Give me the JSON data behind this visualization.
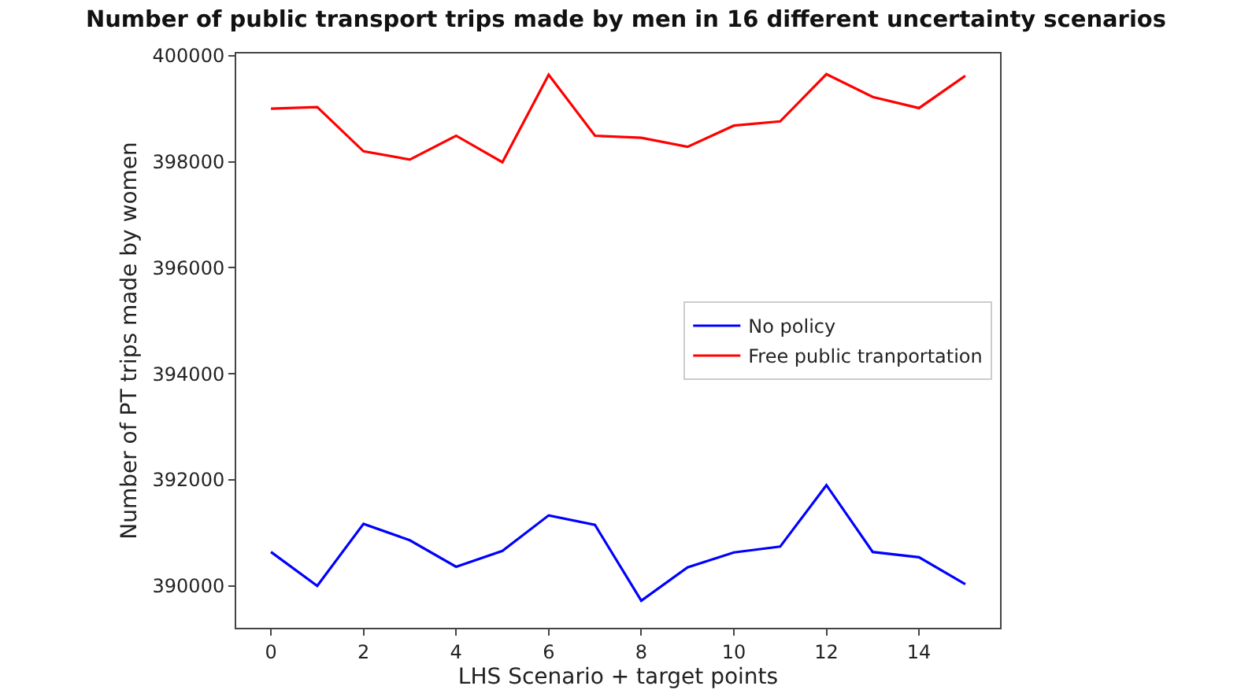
{
  "chart_data": {
    "type": "line",
    "title": "Number of public transport trips made by men in 16 different uncertainty scenarios",
    "xlabel": "LHS Scenario + target points",
    "ylabel": "Number of PT trips made by women",
    "x": [
      0,
      1,
      2,
      3,
      4,
      5,
      6,
      7,
      8,
      9,
      10,
      11,
      12,
      13,
      14,
      15
    ],
    "series": [
      {
        "name": "No policy",
        "color": "#0000ff",
        "values": [
          390640,
          390000,
          391170,
          390860,
          390360,
          390660,
          391330,
          391150,
          389720,
          390350,
          390630,
          390740,
          391900,
          390640,
          390540,
          390030
        ]
      },
      {
        "name": "Free public tranportation",
        "color": "#ff0000",
        "values": [
          399000,
          399030,
          398195,
          398040,
          398490,
          397990,
          399640,
          398490,
          398450,
          398280,
          398680,
          398760,
          399650,
          399220,
          399010,
          399620
        ]
      }
    ],
    "xlim": [
      -0.75,
      15.75
    ],
    "xticks": [
      0,
      2,
      4,
      6,
      8,
      10,
      12,
      14
    ],
    "ylim": [
      389210,
      400040
    ],
    "yticks": [
      390000,
      392000,
      394000,
      396000,
      398000,
      400000
    ],
    "grid": false,
    "legend": "right",
    "marker": "none",
    "line_style": "solid"
  }
}
